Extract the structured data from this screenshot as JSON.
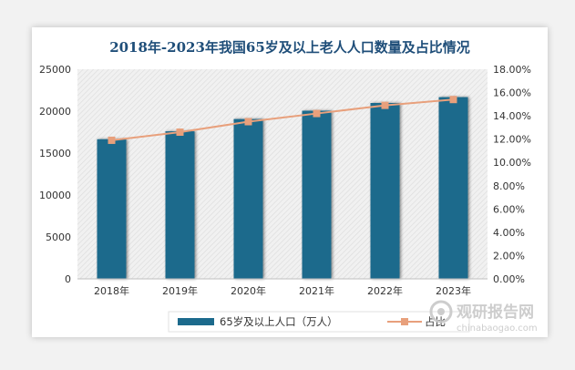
{
  "chart_data": {
    "type": "bar",
    "title": "2018年-2023年我国65岁及以上老人人口数量及占比情况",
    "categories": [
      "2018年",
      "2019年",
      "2020年",
      "2021年",
      "2022年",
      "2023年"
    ],
    "series": [
      {
        "name": "65岁及以上人口（万人）",
        "type": "bar",
        "axis": "left",
        "values": [
          16658,
          17603,
          19064,
          20056,
          20978,
          21676
        ],
        "color": "#1c6a8c"
      },
      {
        "name": "占比",
        "type": "line",
        "axis": "right",
        "values": [
          11.9,
          12.6,
          13.5,
          14.2,
          14.9,
          15.4
        ],
        "color": "#e8a07c"
      }
    ],
    "y_left": {
      "min": 0,
      "max": 25000,
      "step": 5000,
      "ticks": [
        "0",
        "5000",
        "10000",
        "15000",
        "20000",
        "25000"
      ]
    },
    "y_right": {
      "min": 0,
      "max": 18,
      "step": 2,
      "ticks": [
        "0.00%",
        "2.00%",
        "4.00%",
        "6.00%",
        "8.00%",
        "10.00%",
        "12.00%",
        "14.00%",
        "16.00%",
        "18.00%"
      ]
    },
    "legend": {
      "placement": "bottom"
    },
    "grid": false
  },
  "watermark": {
    "brand": "观研报告网",
    "url": "chinabaogao.com"
  }
}
